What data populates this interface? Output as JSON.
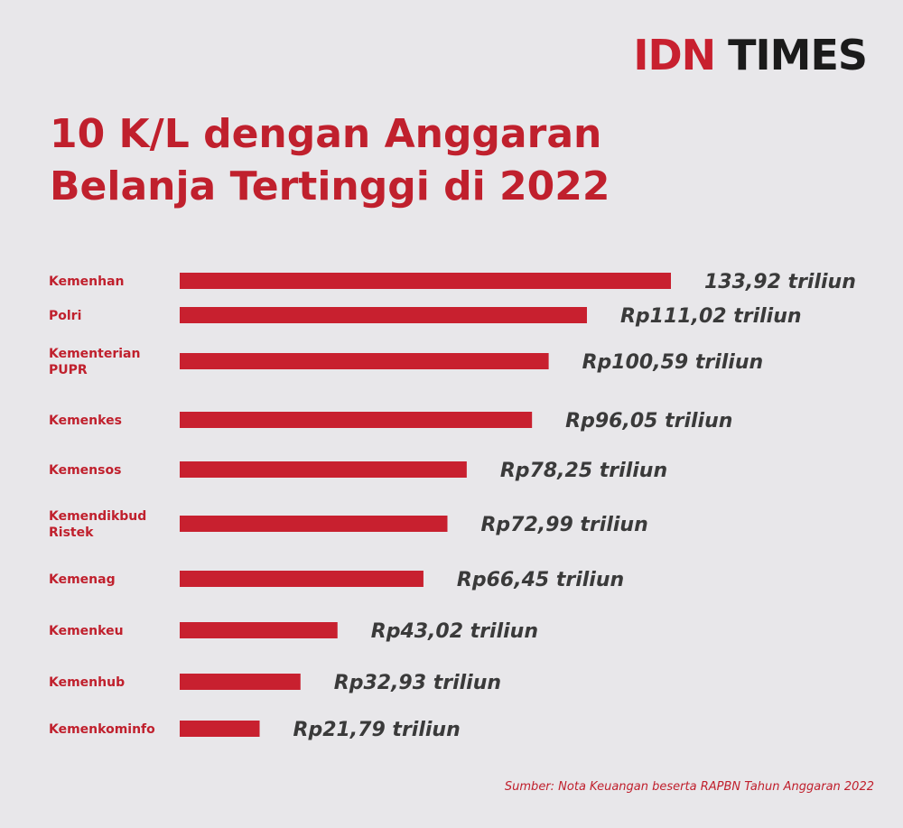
{
  "logo": {
    "part1": "IDN",
    "part2": "TIMES"
  },
  "title": {
    "line1": "10 K/L dengan Anggaran",
    "line2": "Belanja Tertinggi di 2022"
  },
  "source": "Sumber: Nota Keuangan beserta RAPBN Tahun Anggaran 2022",
  "colors": {
    "accent": "#c8202f",
    "background": "#e8e7ea",
    "value_text": "#3a3a3a"
  },
  "chart_data": {
    "type": "bar",
    "orientation": "horizontal",
    "title": "10 K/L dengan Anggaran Belanja Tertinggi di 2022",
    "unit": "triliun",
    "categories": [
      [
        "Kemenhan"
      ],
      [
        "Polri"
      ],
      [
        "Kementerian",
        "PUPR"
      ],
      [
        "Kemenkes"
      ],
      [
        "Kemensos"
      ],
      [
        "Kemendikbud",
        "Ristek"
      ],
      [
        "Kemenag"
      ],
      [
        "Kemenkeu"
      ],
      [
        "Kemenhub"
      ],
      [
        "Kemenkominfo"
      ]
    ],
    "values": [
      133.92,
      111.02,
      100.59,
      96.05,
      78.25,
      72.99,
      66.45,
      43.02,
      32.93,
      21.79
    ],
    "value_labels": [
      "133,92 triliun",
      "Rp111,02 triliun",
      "Rp100,59 triliun",
      "Rp96,05 triliun",
      "Rp78,25 triliun",
      "Rp72,99 triliun",
      "Rp66,45 triliun",
      "Rp43,02 triliun",
      "Rp32,93 triliun",
      "Rp21,79 triliun"
    ],
    "grid": false,
    "legend": "none"
  }
}
